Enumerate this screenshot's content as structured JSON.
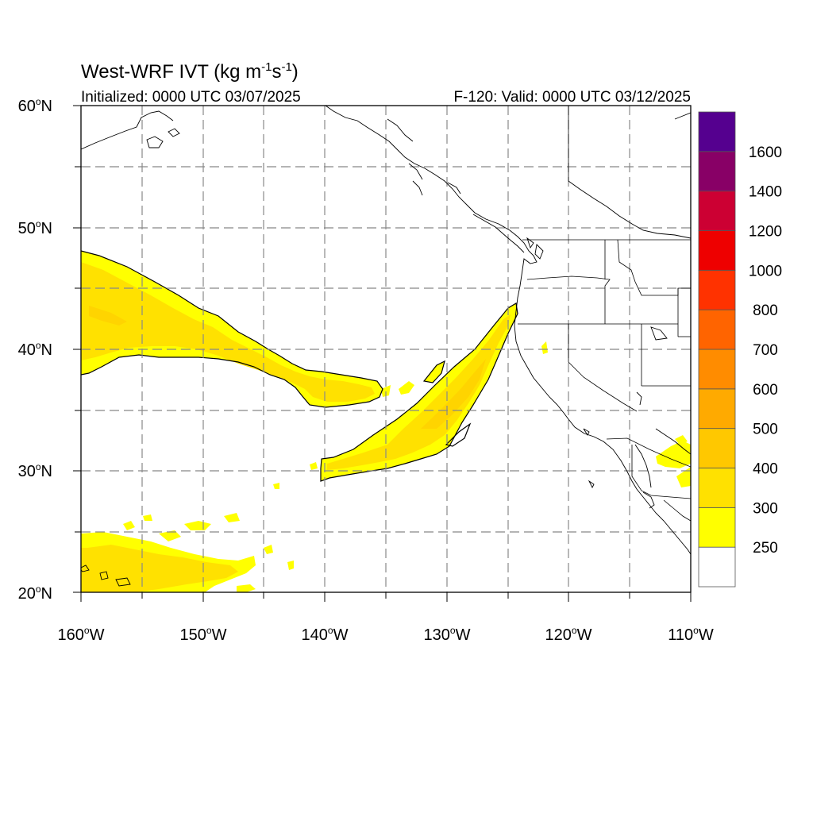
{
  "header": {
    "title_main": "West-WRF IVT (kg m",
    "title_sup1": "-1",
    "title_mid": "s",
    "title_sup2": "-1",
    "title_end": ")",
    "init_text": "Initialized: 0000 UTC 03/07/2025",
    "valid_text": "F-120: Valid: 0000 UTC 03/12/2025"
  },
  "axes": {
    "lat_labels": [
      {
        "deg": "60",
        "hemi": "N",
        "value": 60
      },
      {
        "deg": "50",
        "hemi": "N",
        "value": 50
      },
      {
        "deg": "40",
        "hemi": "N",
        "value": 40
      },
      {
        "deg": "30",
        "hemi": "N",
        "value": 30
      },
      {
        "deg": "20",
        "hemi": "N",
        "value": 20
      }
    ],
    "lon_labels": [
      {
        "deg": "160",
        "hemi": "W",
        "value": -160
      },
      {
        "deg": "150",
        "hemi": "W",
        "value": -150
      },
      {
        "deg": "140",
        "hemi": "W",
        "value": -140
      },
      {
        "deg": "130",
        "hemi": "W",
        "value": -130
      },
      {
        "deg": "120",
        "hemi": "W",
        "value": -120
      },
      {
        "deg": "110",
        "hemi": "W",
        "value": -110
      }
    ],
    "lon_range": [
      -160,
      -110
    ],
    "lat_range": [
      20,
      60
    ],
    "gridlines": "dashed every 5 degrees"
  },
  "colorbar": {
    "labels": [
      "250",
      "300",
      "400",
      "500",
      "600",
      "700",
      "800",
      "1000",
      "1200",
      "1400",
      "1600"
    ],
    "colors": [
      "#ffffff",
      "#ffff00",
      "#ffe100",
      "#ffc800",
      "#ffaa00",
      "#ff8c00",
      "#ff6400",
      "#ff3200",
      "#ee0000",
      "#cc0033",
      "#880066",
      "#55008f"
    ]
  }
}
